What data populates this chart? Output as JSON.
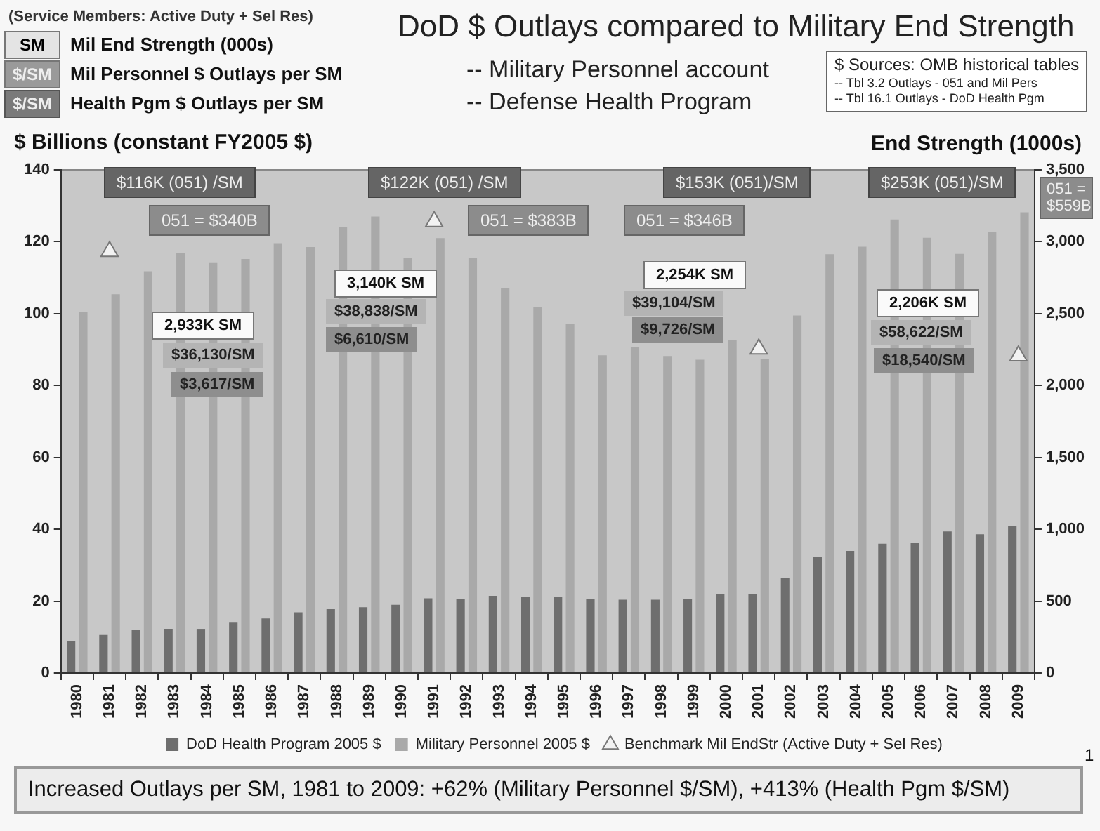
{
  "chart_data": {
    "type": "bar",
    "title": "DoD $ Outlays compared to Military End Strength",
    "ylabel": "$ Billions (constant FY2005 $)",
    "y2label": "End Strength (1000s)",
    "categories": [
      "1980",
      "1981",
      "1982",
      "1983",
      "1984",
      "1985",
      "1986",
      "1987",
      "1988",
      "1989",
      "1990",
      "1991",
      "1992",
      "1993",
      "1994",
      "1995",
      "1996",
      "1997",
      "1998",
      "1999",
      "2000",
      "2001",
      "2002",
      "2003",
      "2004",
      "2005",
      "2006",
      "2007",
      "2008",
      "2009"
    ],
    "series": [
      {
        "name": "DoD Health Program 2005 $",
        "color": "#6e6e6e",
        "values": [
          9,
          10.6,
          12,
          12.3,
          12.3,
          14.2,
          15.2,
          16.9,
          17.8,
          18.3,
          19,
          20.8,
          20.6,
          21.5,
          21.2,
          21.3,
          20.7,
          20.4,
          20.4,
          20.6,
          21.9,
          21.9,
          26.5,
          32.3,
          34,
          36,
          36.3,
          39.4,
          38.6,
          40.8
        ]
      },
      {
        "name": "Military Personnel 2005 $",
        "color": "#a9a9a9",
        "values": [
          100.4,
          105.4,
          111.8,
          116.9,
          114.1,
          115.2,
          119.6,
          118.5,
          124.2,
          127,
          115.6,
          121,
          115.6,
          107,
          101.8,
          97.2,
          88.4,
          90.7,
          88.2,
          87.2,
          92.6,
          87.5,
          99.5,
          116.5,
          118.6,
          126.2,
          121.1,
          116.6,
          122.8,
          128.2
        ]
      },
      {
        "name": "Benchmark Mil EndStr (Active Duty + Sel Res)",
        "type": "scatter",
        "marker": "triangle",
        "axis": "y2",
        "color": "#f2f2f2",
        "values": [
          null,
          2933,
          null,
          null,
          null,
          null,
          null,
          null,
          null,
          null,
          null,
          3140,
          null,
          null,
          null,
          null,
          null,
          null,
          null,
          null,
          null,
          2254,
          null,
          null,
          null,
          null,
          null,
          null,
          null,
          2206
        ]
      }
    ],
    "ylim": [
      0,
      140
    ],
    "yticks": [
      0,
      20,
      40,
      60,
      80,
      100,
      120,
      140
    ],
    "y2lim": [
      0,
      3500
    ],
    "y2ticks": [
      {
        "value": 0,
        "label": "0"
      },
      {
        "value": 500,
        "label": "500"
      },
      {
        "value": 1000,
        "label": "1,000"
      },
      {
        "value": 1500,
        "label": "1,500"
      },
      {
        "value": 2000,
        "label": "2,000"
      },
      {
        "value": 2500,
        "label": "2,500"
      },
      {
        "value": 3000,
        "label": "3,000"
      },
      {
        "value": 3500,
        "label": "3,500"
      }
    ],
    "grid": false,
    "legend": "bottom",
    "annotations": [
      "(Service Members: Active Duty + Sel Res)",
      "SM",
      "Mil End Strength (000s)",
      "$/SM",
      "Mil Personnel $ Outlays per SM",
      "$/SM",
      "Health Pgm $ Outlays per SM",
      "-- Military Personnel account",
      "-- Defense Health Program",
      "$ Sources: OMB historical tables",
      "-- Tbl 3.2 Outlays - 051 and Mil Pers",
      "-- Tbl 16.1 Outlays - DoD Health Pgm",
      "$116K (051) /SM",
      "051 = $340B",
      "2,933K SM",
      "$36,130/SM",
      "$3,617/SM",
      "$122K (051) /SM",
      "051 = $383B",
      "3,140K SM",
      "$38,838/SM",
      "$6,610/SM",
      "$153K (051)/SM",
      "051 = $346B",
      "2,254K SM",
      "$39,104/SM",
      "$9,726/SM",
      "$253K (051)/SM",
      "051 = $559B",
      "2,206K SM",
      "$58,622/SM",
      "$18,540/SM",
      "Increased Outlays per SM, 1981 to 2009:  +62% (Military Personnel $/SM), +413% (Health Pgm $/SM)",
      "1"
    ]
  }
}
